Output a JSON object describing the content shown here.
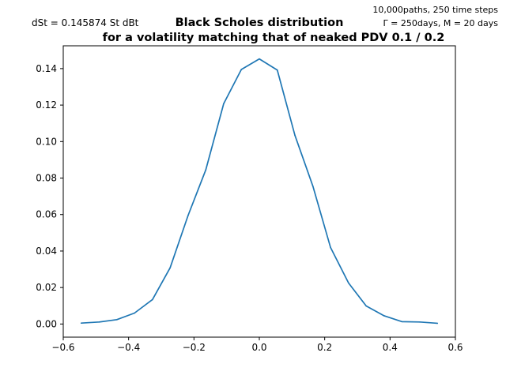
{
  "chart_data": {
    "type": "line",
    "title_line1": "Black Scholes distribution",
    "title_line2": "for a volatility matching that of neaked PDV 0.1 / 0.2",
    "left_annotation": "dSt = 0.145874 St dBt",
    "right_annotation_line1": "10,000paths, 250 time steps",
    "right_annotation_line2": "Γ = 250days, M = 20 days",
    "xlabel": "",
    "ylabel": "",
    "xlim": [
      -0.6,
      0.6
    ],
    "ylim": [
      -0.0072,
      0.1525
    ],
    "x_ticks": [
      -0.6,
      -0.4,
      -0.2,
      0.0,
      0.2,
      0.4,
      0.6
    ],
    "x_tick_labels": [
      "−0.6",
      "−0.4",
      "−0.2",
      "0.0",
      "0.2",
      "0.4",
      "0.6"
    ],
    "y_ticks": [
      0.0,
      0.02,
      0.04,
      0.06,
      0.08,
      0.1,
      0.12,
      0.14
    ],
    "y_tick_labels": [
      "0.00",
      "0.02",
      "0.04",
      "0.06",
      "0.08",
      "0.10",
      "0.12",
      "0.14"
    ],
    "grid": false,
    "line_color": "#1f77b4",
    "series": [
      {
        "x": [
          -0.545,
          -0.49,
          -0.436,
          -0.382,
          -0.327,
          -0.273,
          -0.218,
          -0.164,
          -0.109,
          -0.055,
          0.0,
          0.055,
          0.109,
          0.164,
          0.218,
          0.273,
          0.327,
          0.382,
          0.436,
          0.491,
          0.545
        ],
        "y": [
          0.0005,
          0.0011,
          0.0024,
          0.006,
          0.0134,
          0.0308,
          0.0595,
          0.0844,
          0.1208,
          0.1395,
          0.1453,
          0.1392,
          0.1034,
          0.0755,
          0.0419,
          0.0225,
          0.0099,
          0.0045,
          0.0013,
          0.0011,
          0.0004
        ]
      }
    ]
  }
}
